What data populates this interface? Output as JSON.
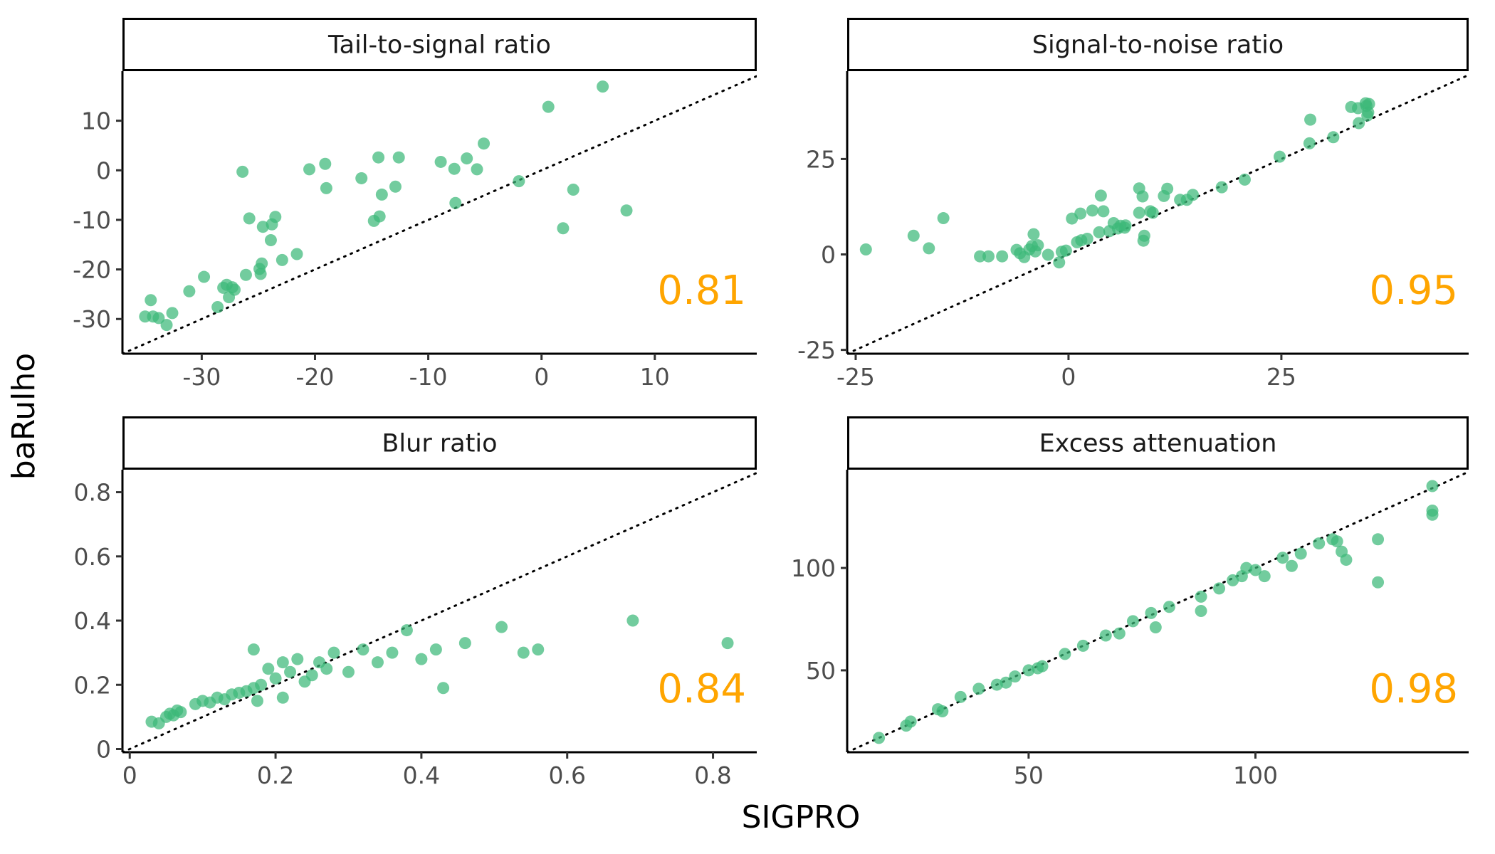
{
  "figure": {
    "xlabel": "SIGPRO",
    "ylabel": "baRulho",
    "point_color": "#3CB878",
    "correlation_color": "#FFA500",
    "reference_line": "y = x (dotted)"
  },
  "chart_data": [
    {
      "type": "scatter",
      "title": "Tail-to-signal ratio",
      "correlation": "0.81",
      "xlim": [
        -37,
        19
      ],
      "ylim": [
        -37,
        20
      ],
      "x_ticks": [
        -30,
        -20,
        -10,
        0,
        10
      ],
      "y_ticks": [
        -30,
        -20,
        -10,
        0,
        10
      ],
      "points": [
        [
          -35,
          -29.5
        ],
        [
          -34.3,
          -29.5
        ],
        [
          -33.8,
          -29.8
        ],
        [
          -34.5,
          -26.2
        ],
        [
          -33.1,
          -31.2
        ],
        [
          -32.6,
          -28.8
        ],
        [
          -31.1,
          -24.4
        ],
        [
          -29.8,
          -21.5
        ],
        [
          -28.6,
          -27.6
        ],
        [
          -28.1,
          -23.7
        ],
        [
          -27.6,
          -25.6
        ],
        [
          -27.8,
          -23.1
        ],
        [
          -27.1,
          -24.1
        ],
        [
          -27.3,
          -23.6
        ],
        [
          -26.1,
          -21.1
        ],
        [
          -26.4,
          -0.3
        ],
        [
          -25.8,
          -9.7
        ],
        [
          -24.9,
          -19.9
        ],
        [
          -24.7,
          -18.8
        ],
        [
          -24.8,
          -20.9
        ],
        [
          -24.6,
          -11.4
        ],
        [
          -23.8,
          -10.9
        ],
        [
          -23.9,
          -14.1
        ],
        [
          -23.5,
          -9.4
        ],
        [
          -22.9,
          -18.1
        ],
        [
          -21.6,
          -16.9
        ],
        [
          -20.5,
          0.2
        ],
        [
          -19.1,
          1.3
        ],
        [
          -19.0,
          -3.6
        ],
        [
          -15.9,
          -1.6
        ],
        [
          -14.8,
          -10.2
        ],
        [
          -14.3,
          -9.3
        ],
        [
          -14.4,
          2.6
        ],
        [
          -14.1,
          -4.9
        ],
        [
          -12.9,
          -3.3
        ],
        [
          -12.6,
          2.6
        ],
        [
          -8.9,
          1.7
        ],
        [
          -7.7,
          0.3
        ],
        [
          -7.6,
          -6.6
        ],
        [
          -6.6,
          2.4
        ],
        [
          -5.7,
          0.2
        ],
        [
          -5.1,
          5.4
        ],
        [
          -2.0,
          -2.2
        ],
        [
          0.6,
          12.8
        ],
        [
          1.9,
          -11.7
        ],
        [
          2.8,
          -3.9
        ],
        [
          5.4,
          16.9
        ],
        [
          7.5,
          -8.1
        ]
      ]
    },
    {
      "type": "scatter",
      "title": "Signal-to-noise ratio",
      "correlation": "0.95",
      "xlim": [
        -26,
        47
      ],
      "ylim": [
        -26,
        48
      ],
      "x_ticks": [
        -25,
        0,
        25
      ],
      "y_ticks": [
        -25,
        0,
        25
      ],
      "points": [
        [
          -23.8,
          1.3
        ],
        [
          -18.2,
          4.9
        ],
        [
          -16.4,
          1.6
        ],
        [
          -14.7,
          9.5
        ],
        [
          -10.4,
          -0.5
        ],
        [
          -9.4,
          -0.5
        ],
        [
          -7.8,
          -0.5
        ],
        [
          -6.1,
          1.2
        ],
        [
          -5.7,
          0.3
        ],
        [
          -5.2,
          -0.7
        ],
        [
          -4.6,
          1.3
        ],
        [
          -4.3,
          2.2
        ],
        [
          -3.9,
          0.8
        ],
        [
          -4.1,
          5.3
        ],
        [
          -3.6,
          2.4
        ],
        [
          -2.4,
          -0.1
        ],
        [
          -1.1,
          -2.1
        ],
        [
          -0.8,
          0.7
        ],
        [
          -0.3,
          1.0
        ],
        [
          0.4,
          9.4
        ],
        [
          1.0,
          3.2
        ],
        [
          1.4,
          10.7
        ],
        [
          1.5,
          3.7
        ],
        [
          2.2,
          4.1
        ],
        [
          2.8,
          11.5
        ],
        [
          3.6,
          5.8
        ],
        [
          3.8,
          15.4
        ],
        [
          4.1,
          11.3
        ],
        [
          4.8,
          6.1
        ],
        [
          5.3,
          8.2
        ],
        [
          5.8,
          6.8
        ],
        [
          6.1,
          7.5
        ],
        [
          6.6,
          7.0
        ],
        [
          6.7,
          7.6
        ],
        [
          8.3,
          10.9
        ],
        [
          8.3,
          17.3
        ],
        [
          8.7,
          15.2
        ],
        [
          8.8,
          3.6
        ],
        [
          8.9,
          4.9
        ],
        [
          9.6,
          11.3
        ],
        [
          9.9,
          10.9
        ],
        [
          11.2,
          15.3
        ],
        [
          11.6,
          17.2
        ],
        [
          13.1,
          14.3
        ],
        [
          13.9,
          14.3
        ],
        [
          14.6,
          15.6
        ],
        [
          18.0,
          17.6
        ],
        [
          20.7,
          19.6
        ],
        [
          24.8,
          25.6
        ],
        [
          28.3,
          29.1
        ],
        [
          28.4,
          35.3
        ],
        [
          31.1,
          30.7
        ],
        [
          33.2,
          38.6
        ],
        [
          34.1,
          34.4
        ],
        [
          34.0,
          38.3
        ],
        [
          34.9,
          39.6
        ],
        [
          35.1,
          36.4
        ],
        [
          35.0,
          38.9
        ],
        [
          35.2,
          37.2
        ],
        [
          35.3,
          39.4
        ]
      ]
    },
    {
      "type": "scatter",
      "title": "Blur ratio",
      "correlation": "0.84",
      "xlim": [
        -0.01,
        0.86
      ],
      "ylim": [
        -0.01,
        0.87
      ],
      "x_ticks": [
        0.0,
        0.2,
        0.4,
        0.6,
        0.8
      ],
      "y_ticks": [
        0.0,
        0.2,
        0.4,
        0.6,
        0.8
      ],
      "points": [
        [
          0.03,
          0.085
        ],
        [
          0.04,
          0.08
        ],
        [
          0.05,
          0.1
        ],
        [
          0.055,
          0.11
        ],
        [
          0.06,
          0.105
        ],
        [
          0.065,
          0.12
        ],
        [
          0.07,
          0.115
        ],
        [
          0.09,
          0.14
        ],
        [
          0.1,
          0.15
        ],
        [
          0.11,
          0.145
        ],
        [
          0.12,
          0.16
        ],
        [
          0.13,
          0.155
        ],
        [
          0.14,
          0.17
        ],
        [
          0.15,
          0.175
        ],
        [
          0.16,
          0.18
        ],
        [
          0.17,
          0.19
        ],
        [
          0.17,
          0.31
        ],
        [
          0.175,
          0.15
        ],
        [
          0.18,
          0.2
        ],
        [
          0.19,
          0.25
        ],
        [
          0.2,
          0.22
        ],
        [
          0.21,
          0.27
        ],
        [
          0.21,
          0.16
        ],
        [
          0.22,
          0.24
        ],
        [
          0.23,
          0.28
        ],
        [
          0.24,
          0.21
        ],
        [
          0.25,
          0.23
        ],
        [
          0.26,
          0.27
        ],
        [
          0.27,
          0.25
        ],
        [
          0.28,
          0.3
        ],
        [
          0.3,
          0.24
        ],
        [
          0.32,
          0.31
        ],
        [
          0.34,
          0.27
        ],
        [
          0.36,
          0.3
        ],
        [
          0.38,
          0.37
        ],
        [
          0.4,
          0.28
        ],
        [
          0.42,
          0.31
        ],
        [
          0.43,
          0.19
        ],
        [
          0.46,
          0.33
        ],
        [
          0.51,
          0.38
        ],
        [
          0.54,
          0.3
        ],
        [
          0.56,
          0.31
        ],
        [
          0.69,
          0.4
        ],
        [
          0.82,
          0.33
        ]
      ]
    },
    {
      "type": "scatter",
      "title": "Excess attenuation",
      "correlation": "0.98",
      "xlim": [
        10,
        147
      ],
      "ylim": [
        10,
        148
      ],
      "x_ticks": [
        50,
        100
      ],
      "y_ticks": [
        50,
        100
      ],
      "points": [
        [
          17,
          17
        ],
        [
          23,
          23
        ],
        [
          24,
          25
        ],
        [
          30,
          31
        ],
        [
          31,
          30
        ],
        [
          35,
          37
        ],
        [
          39,
          41
        ],
        [
          43,
          43
        ],
        [
          45,
          44
        ],
        [
          47,
          47
        ],
        [
          50,
          50
        ],
        [
          52,
          51
        ],
        [
          53,
          52
        ],
        [
          58,
          58
        ],
        [
          62,
          62
        ],
        [
          67,
          67
        ],
        [
          70,
          68
        ],
        [
          73,
          74
        ],
        [
          77,
          78
        ],
        [
          78,
          71
        ],
        [
          81,
          81
        ],
        [
          88,
          86
        ],
        [
          88,
          79
        ],
        [
          92,
          90
        ],
        [
          95,
          94
        ],
        [
          97,
          96
        ],
        [
          98,
          100
        ],
        [
          100,
          99
        ],
        [
          102,
          96
        ],
        [
          106,
          105
        ],
        [
          108,
          101
        ],
        [
          110,
          107
        ],
        [
          114,
          112
        ],
        [
          117,
          114
        ],
        [
          118,
          113
        ],
        [
          119,
          108
        ],
        [
          120,
          104
        ],
        [
          127,
          114
        ],
        [
          127,
          93
        ],
        [
          139,
          140
        ],
        [
          139,
          128
        ],
        [
          139,
          126
        ]
      ]
    }
  ]
}
